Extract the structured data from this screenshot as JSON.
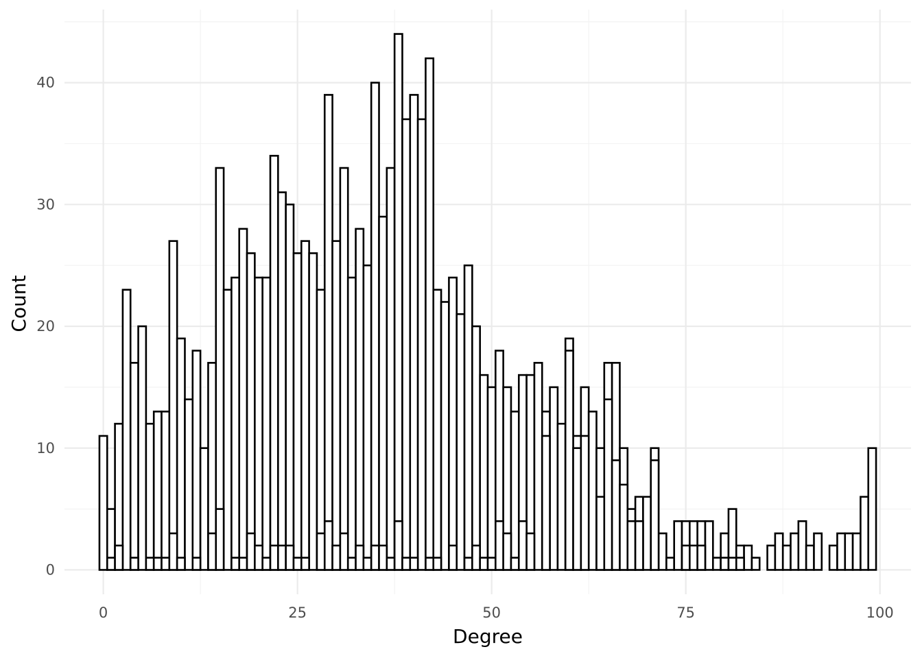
{
  "chart_data": {
    "type": "bar",
    "variant": "histogram-overlay",
    "xlabel": "Degree",
    "ylabel": "Count",
    "xlim": [
      -5,
      104
    ],
    "ylim": [
      -2,
      46
    ],
    "x_ticks": [
      0,
      25,
      50,
      75,
      100
    ],
    "y_ticks": [
      0,
      10,
      20,
      30,
      40
    ],
    "grid": true,
    "bin_width": 1,
    "series": [
      {
        "values": [
          11,
          5,
          12,
          23,
          17,
          20,
          12,
          13,
          13,
          27,
          19,
          14,
          18,
          10,
          17,
          33,
          23,
          24,
          28,
          26,
          24,
          24,
          34,
          31,
          30,
          26,
          27,
          26,
          23,
          39,
          27,
          33,
          24,
          28,
          25,
          40,
          29,
          33,
          44,
          37,
          39,
          37,
          42,
          23,
          22,
          24,
          21,
          25,
          20,
          16,
          15,
          18,
          15,
          13,
          16,
          16,
          17,
          13,
          15,
          12,
          19,
          11,
          15,
          13,
          10,
          17,
          17,
          10,
          5,
          6,
          6,
          10,
          3,
          1,
          4,
          4,
          4,
          4,
          4,
          1,
          3,
          5,
          2,
          2,
          1,
          0,
          2,
          3,
          2,
          3,
          4,
          2,
          3,
          0,
          2,
          3,
          3,
          3,
          6,
          10
        ]
      },
      {
        "values": [
          0,
          1,
          2,
          0,
          1,
          0,
          1,
          1,
          1,
          3,
          1,
          0,
          1,
          0,
          3,
          5,
          0,
          1,
          1,
          3,
          2,
          1,
          2,
          2,
          2,
          1,
          1,
          0,
          3,
          4,
          2,
          3,
          1,
          2,
          1,
          2,
          2,
          1,
          4,
          1,
          1,
          0,
          1,
          1,
          0,
          2,
          0,
          1,
          2,
          1,
          1,
          4,
          3,
          1,
          4,
          3,
          0,
          11,
          0,
          0,
          18,
          10,
          11,
          0,
          6,
          14,
          9,
          7,
          4,
          4,
          0,
          9,
          0,
          0,
          0,
          2,
          2,
          2,
          0,
          0,
          1,
          1,
          1,
          0,
          0,
          0,
          0,
          0,
          0,
          0,
          0,
          0,
          0,
          0,
          0,
          0,
          0,
          0,
          0,
          0
        ]
      }
    ]
  }
}
